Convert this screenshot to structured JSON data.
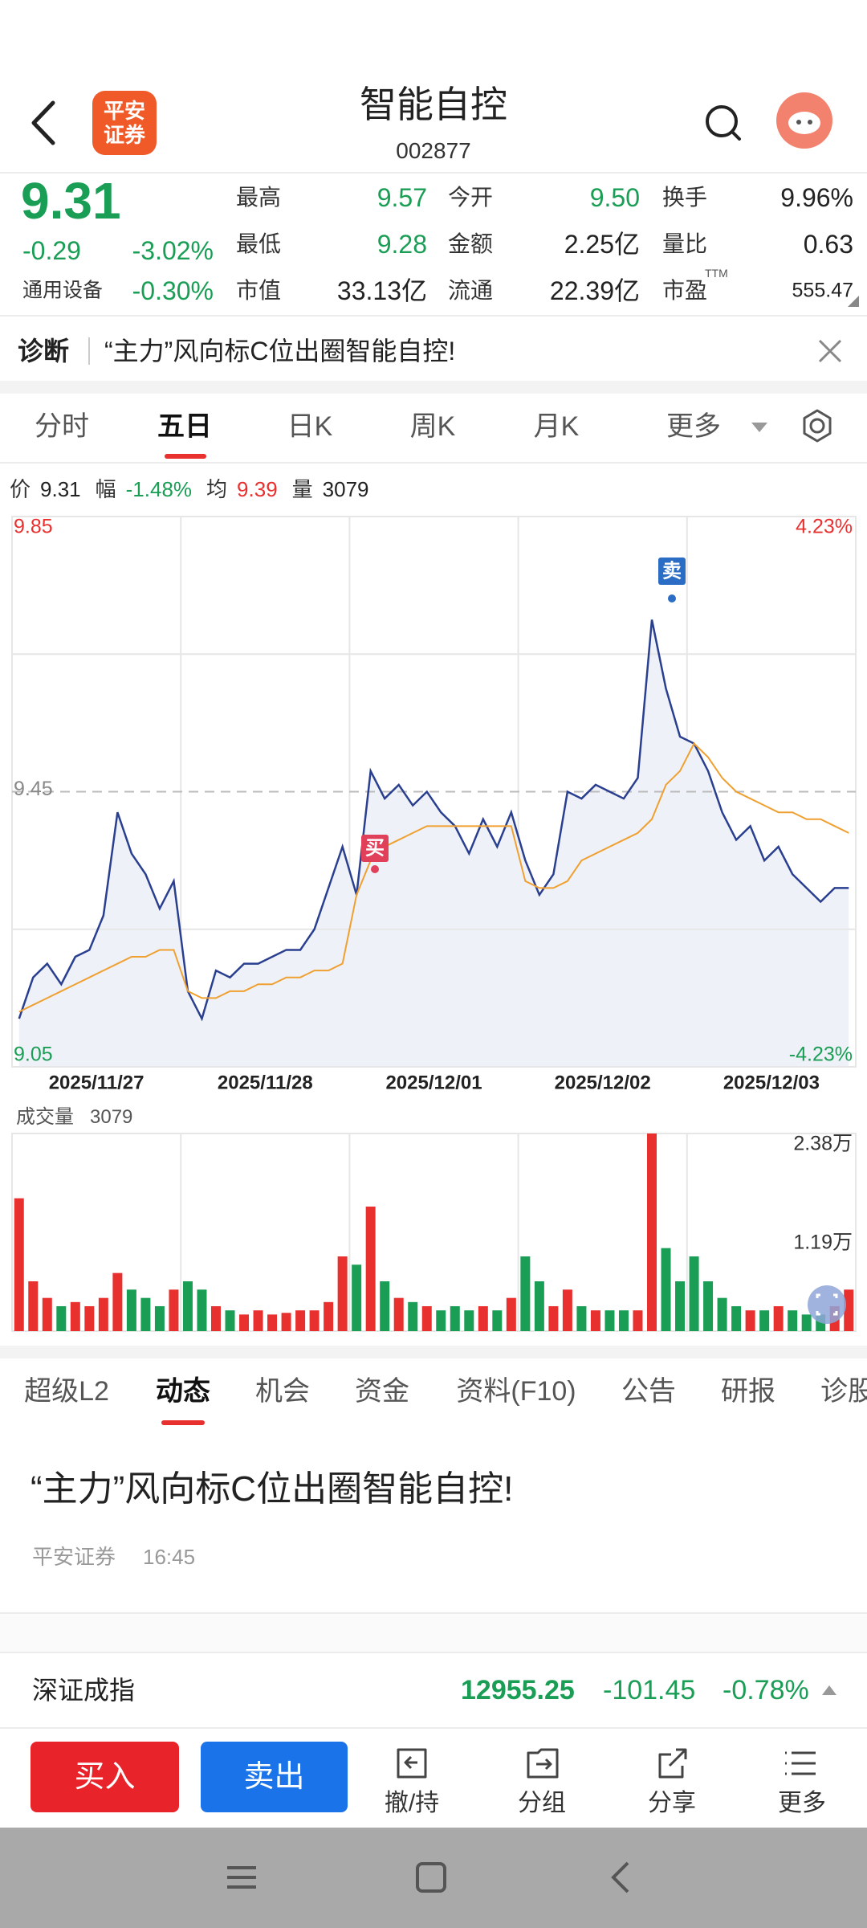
{
  "header": {
    "title": "智能自控",
    "code": "002877",
    "logo_lines": [
      "平安",
      "证券"
    ]
  },
  "quote": {
    "price": "9.31",
    "change": "-0.29",
    "change_pct": "-3.02%",
    "sector": "通用设备",
    "sector_pct": "-0.30%",
    "stats": [
      {
        "label": "最高",
        "value": "9.57",
        "color": "#1a9e55"
      },
      {
        "label": "最低",
        "value": "9.28",
        "color": "#1a9e55"
      },
      {
        "label": "市值",
        "value": "33.13亿",
        "color": "#222222"
      },
      {
        "label": "今开",
        "value": "9.50",
        "color": "#1a9e55"
      },
      {
        "label": "金额",
        "value": "2.25亿",
        "color": "#222222"
      },
      {
        "label": "流通",
        "value": "22.39亿",
        "color": "#222222"
      },
      {
        "label": "换手",
        "value": "9.96%",
        "color": "#222222"
      },
      {
        "label": "量比",
        "value": "0.63",
        "color": "#222222"
      },
      {
        "label": "市盈",
        "value": "555.47",
        "color": "#222222"
      }
    ],
    "pe_sup": "TTM"
  },
  "diagnosis": {
    "label": "诊断",
    "text": "“主力”风向标C位出圈智能自控!"
  },
  "period_tabs": [
    "分时",
    "五日",
    "日K",
    "周K",
    "月K",
    "更多"
  ],
  "info_line": [
    {
      "label": "价",
      "value": "9.31",
      "color": "#222222"
    },
    {
      "label": "幅",
      "value": "-1.48%",
      "color": "#1a9e55"
    },
    {
      "label": "均",
      "value": "9.39",
      "color": "#e8312f"
    },
    {
      "label": "量",
      "value": "3079",
      "color": "#222222"
    }
  ],
  "chart_data": [
    {
      "type": "line",
      "days": [
        "2025/11/27",
        "2025/11/28",
        "2025/12/01",
        "2025/12/02",
        "2025/12/03"
      ],
      "series": [
        {
          "color": "#2a3f8f",
          "values": [
            9.12,
            9.18,
            9.2,
            9.17,
            9.21,
            9.22,
            9.27,
            9.42,
            9.36,
            9.33,
            9.28,
            9.32,
            9.16,
            9.12,
            9.19,
            9.18,
            9.2,
            9.2,
            9.21,
            9.22,
            9.22,
            9.25,
            9.31,
            9.37,
            9.3,
            9.48,
            9.44,
            9.46,
            9.43,
            9.45,
            9.42,
            9.4,
            9.36,
            9.41,
            9.37,
            9.42,
            9.35,
            9.3,
            9.33,
            9.45,
            9.44,
            9.46,
            9.45,
            9.44,
            9.47,
            9.7,
            9.6,
            9.53,
            9.52,
            9.48,
            9.42,
            9.38,
            9.4,
            9.35,
            9.37,
            9.33,
            9.31,
            9.29,
            9.31,
            9.31
          ]
        },
        {
          "color": "#f0a030",
          "values": [
            9.13,
            9.14,
            9.15,
            9.16,
            9.17,
            9.18,
            9.19,
            9.2,
            9.21,
            9.21,
            9.22,
            9.22,
            9.16,
            9.15,
            9.15,
            9.16,
            9.16,
            9.17,
            9.17,
            9.18,
            9.18,
            9.19,
            9.19,
            9.2,
            9.3,
            9.35,
            9.37,
            9.38,
            9.39,
            9.4,
            9.4,
            9.4,
            9.4,
            9.4,
            9.4,
            9.4,
            9.32,
            9.31,
            9.31,
            9.32,
            9.35,
            9.36,
            9.37,
            9.38,
            9.39,
            9.41,
            9.46,
            9.48,
            9.52,
            9.5,
            9.47,
            9.45,
            9.44,
            9.43,
            9.42,
            9.42,
            9.41,
            9.41,
            9.4,
            9.39
          ]
        }
      ],
      "ylim": [
        9.05,
        9.85
      ],
      "yticks": [
        9.85,
        9.45,
        9.05
      ],
      "y2lim": [
        -4.23,
        4.23
      ],
      "y2ticks": [
        {
          "value": 4.23,
          "label": "4.23%"
        },
        {
          "value": -4.23,
          "label": "-4.23%"
        }
      ],
      "markers": [
        {
          "label": "买",
          "color": "#e0405a"
        },
        {
          "label": "卖",
          "color": "#2b6cc4"
        }
      ],
      "up_color": "#e8312f",
      "down_color": "#1a9e55",
      "flat_color": "#888888"
    },
    {
      "type": "bar",
      "label": "成交量",
      "value": "3079",
      "values": [
        16000,
        6000,
        4000,
        3000,
        3500,
        3000,
        4000,
        7000,
        5000,
        4000,
        3000,
        5000,
        6000,
        5000,
        3000,
        2500,
        2000,
        2500,
        2000,
        2200,
        2500,
        2500,
        3500,
        9000,
        8000,
        15000,
        6000,
        4000,
        3500,
        3000,
        2500,
        3000,
        2500,
        3000,
        2500,
        4000,
        9000,
        6000,
        3000,
        5000,
        3000,
        2500,
        2500,
        2500,
        2500,
        23800,
        10000,
        6000,
        9000,
        6000,
        4000,
        3000,
        2500,
        2500,
        3000,
        2500,
        2000,
        2000,
        3000,
        5000
      ],
      "ylim": [
        0,
        23800
      ],
      "yticks": [
        {
          "value": 23800,
          "label": "2.38万"
        },
        {
          "value": 11900,
          "label": "1.19万"
        }
      ]
    }
  ],
  "detail_tabs": [
    "超级L2",
    "动态",
    "机会",
    "资金",
    "资料(F10)",
    "公告",
    "研报",
    "诊股"
  ],
  "news": {
    "title": "“主力”风向标C位出圈智能自控!",
    "source": "平安证券",
    "time": "16:45"
  },
  "index_bar": {
    "name": "深证成指",
    "value": "12955.25",
    "change": "-101.45",
    "pct": "-0.78%"
  },
  "toolbar": {
    "buy": "买入",
    "sell": "卖出",
    "actions": [
      "撤/持",
      "分组",
      "分享",
      "更多"
    ]
  }
}
